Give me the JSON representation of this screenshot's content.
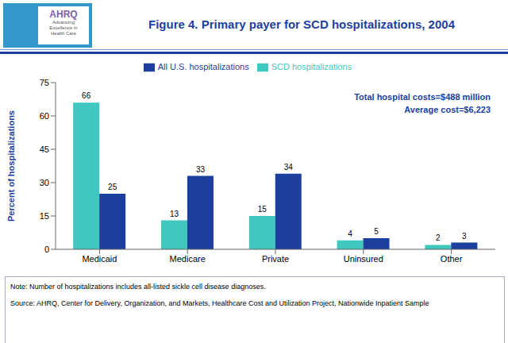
{
  "chart_data": {
    "type": "bar",
    "title": "Figure 4. Primary payer for SCD hospitalizations, 2004",
    "categories": [
      "Medicaid",
      "Medicare",
      "Private",
      "Uninsured",
      "Other"
    ],
    "series": [
      {
        "name": "SCD hospitalizations",
        "color": "#40C8C0",
        "values": [
          66,
          13,
          15,
          4,
          2
        ]
      },
      {
        "name": "All U.S. hospitalizations",
        "color": "#1C3F9E",
        "values": [
          25,
          33,
          34,
          5,
          3
        ]
      }
    ],
    "ylabel": "Percent of hospitalizations",
    "ylim": [
      0,
      75
    ],
    "yticks": [
      0,
      15,
      30,
      45,
      60,
      75
    ],
    "data_labels": true,
    "grid": false,
    "legend": "top",
    "annotations": [
      "Total hospital costs=$488 million",
      "Average cost=$6,223",
      "Note: Number of hospitalizations includes all-listed sickle cell disease diagnoses.",
      "Source: AHRQ, Center for Delivery, Organization, and Markets, Healthcare Cost and Utilization Project, Nationwide Inpatient Sample",
      "AHRQ",
      "Advancing\nExcellence in\nHealth Care"
    ]
  }
}
